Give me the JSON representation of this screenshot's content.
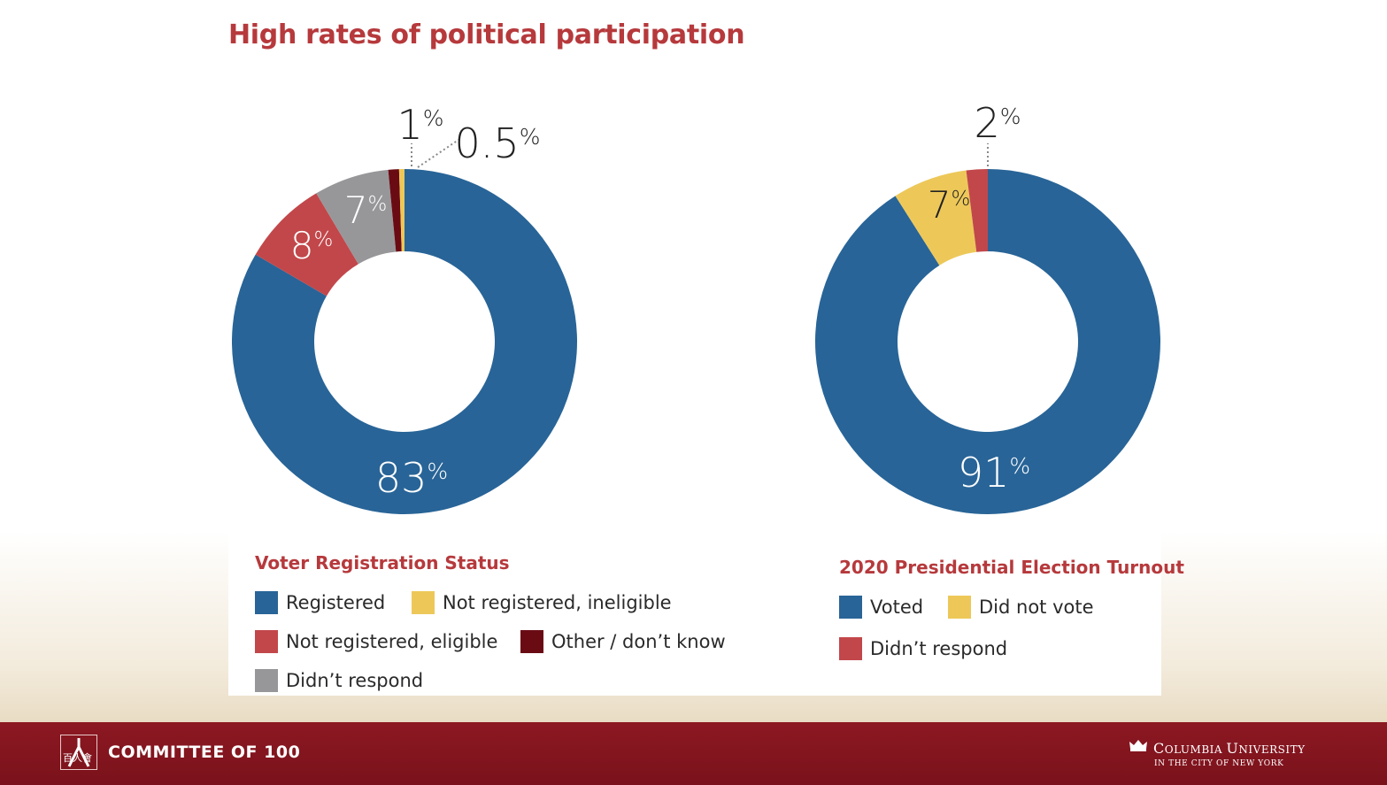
{
  "title": "High rates of political participation",
  "colors": {
    "blue": "#286497",
    "red": "#c2474a",
    "gray": "#97979a",
    "darkred": "#6a0b14",
    "yellow": "#edc859",
    "title_red": "#b6393c",
    "footer_red": "#861621"
  },
  "chart_data": [
    {
      "type": "pie",
      "donut": true,
      "title": "Voter Registration Status",
      "slices": [
        {
          "label": "Registered",
          "value": 83,
          "display": "83",
          "color": "#286497"
        },
        {
          "label": "Not registered, eligible",
          "value": 8,
          "display": "8",
          "color": "#c2474a"
        },
        {
          "label": "Didn’t respond",
          "value": 7,
          "display": "7",
          "color": "#97979a"
        },
        {
          "label": "Other / don’t know",
          "value": 1,
          "display": "1",
          "color": "#6a0b14"
        },
        {
          "label": "Not registered, ineligible",
          "value": 0.5,
          "display": "0.5",
          "color": "#edc859"
        }
      ],
      "legend_order": [
        "Registered",
        "Not registered, ineligible",
        "Not registered, eligible",
        "Other / don’t know",
        "Didn’t respond"
      ],
      "unit": "%"
    },
    {
      "type": "pie",
      "donut": true,
      "title": "2020 Presidential Election Turnout",
      "slices": [
        {
          "label": "Voted",
          "value": 91,
          "display": "91",
          "color": "#286497"
        },
        {
          "label": "Did not vote",
          "value": 7,
          "display": "7",
          "color": "#edc859"
        },
        {
          "label": "Didn’t respond",
          "value": 2,
          "display": "2",
          "color": "#c2474a"
        }
      ],
      "legend_order": [
        "Voted",
        "Did not vote",
        "Didn’t respond"
      ],
      "unit": "%"
    }
  ],
  "footer": {
    "org_name": "COMMITTEE OF 100",
    "logo_glyph": "百人會",
    "university_name": "Columbia University",
    "university_sub": "IN THE CITY OF NEW YORK",
    "icons": [
      "committee-of-100-logo-icon",
      "columbia-crown-icon"
    ]
  }
}
